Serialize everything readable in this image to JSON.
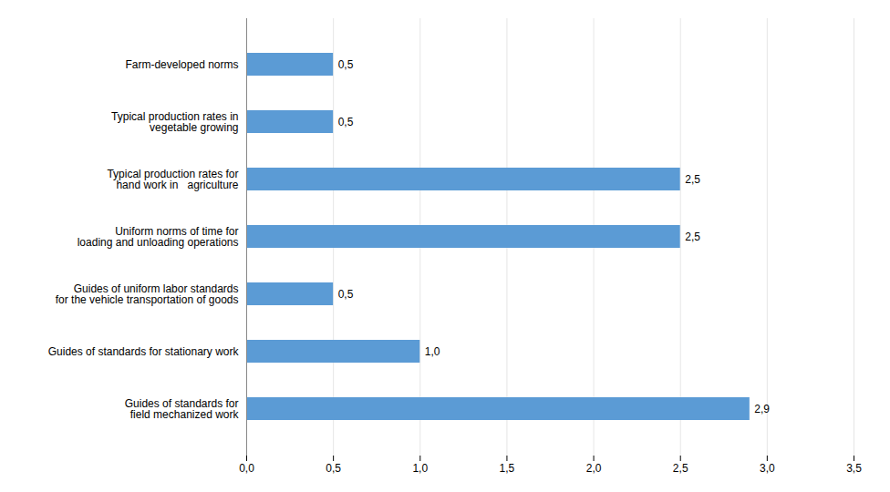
{
  "chart_data": {
    "type": "bar",
    "orientation": "horizontal",
    "categories": [
      "Guides of standards for\nfield mechanized work",
      "Guides of standards for stationary work",
      "Guides of uniform labor standards\nfor the vehicle transportation of goods",
      "Uniform norms of time for\nloading and unloading operations",
      "Typical production rates for\nhand work in   agriculture",
      "Typical production rates in\nvegetable growing",
      "Farm-developed norms"
    ],
    "values": [
      2.9,
      1.0,
      0.5,
      2.5,
      2.5,
      0.5,
      0.5
    ],
    "value_labels": [
      "2,9",
      "1,0",
      "0,5",
      "2,5",
      "2,5",
      "0,5",
      "0,5"
    ],
    "data_labels": true,
    "color": "#5b9bd5",
    "xlim": [
      0,
      3.5
    ],
    "xticks": [
      {
        "value": 0.0,
        "label": "0,0"
      },
      {
        "value": 0.5,
        "label": "0,5"
      },
      {
        "value": 1.0,
        "label": "1,0"
      },
      {
        "value": 1.5,
        "label": "1,5"
      },
      {
        "value": 2.0,
        "label": "2,0"
      },
      {
        "value": 2.5,
        "label": "2,5"
      },
      {
        "value": 3.0,
        "label": "3,0"
      },
      {
        "value": 3.5,
        "label": "3,5"
      }
    ],
    "grid": true
  }
}
